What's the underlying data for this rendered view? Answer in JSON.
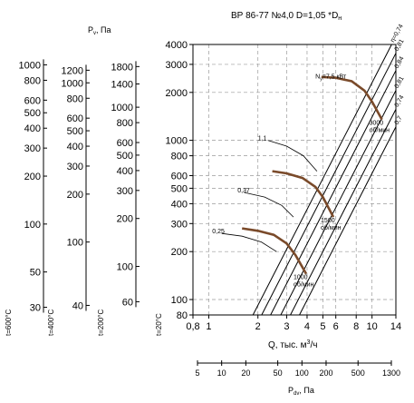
{
  "chart_data": {
    "type": "line",
    "title": "ВР 86-77 №4,0   D=1,05   *D",
    "title_subscript": "н",
    "xlabel": "Q, тыс. м",
    "xlabel_superscript": "3",
    "xlabel_suffix": "/ч",
    "x_scale": "log",
    "y_scale": "log",
    "xlim": [
      0.8,
      14
    ],
    "ylim": [
      80,
      4000
    ],
    "grid": true,
    "x_ticks": [
      0.8,
      1,
      2,
      3,
      4,
      5,
      6,
      8,
      10,
      14
    ],
    "x_tick_labels": [
      "0,8",
      "1",
      "2",
      "3",
      "4",
      "5",
      "6",
      "8",
      "10",
      "14"
    ],
    "y_ticks": [
      80,
      100,
      200,
      300,
      400,
      500,
      600,
      800,
      1000,
      2000,
      3000,
      4000
    ],
    "y_tick_labels": [
      "80",
      "100",
      "200",
      "300",
      "400",
      "500",
      "600",
      "800",
      "1000",
      "2000",
      "3000",
      "4000"
    ],
    "temperature_label": "t=20°C",
    "pv_label": "P",
    "pv_label_sub": "v",
    "pv_label_suffix": ", Па",
    "pv_scales": [
      {
        "name": "t=600°C",
        "ticks": [
          30,
          50,
          100,
          200,
          300,
          400,
          500,
          600,
          800,
          1000
        ]
      },
      {
        "name": "t=400°C",
        "ticks": [
          40,
          100,
          200,
          300,
          400,
          500,
          600,
          800,
          1000,
          1200
        ]
      },
      {
        "name": "t=200°C",
        "ticks": [
          60,
          100,
          200,
          300,
          400,
          500,
          600,
          800,
          1000,
          1400,
          1800
        ]
      }
    ],
    "pdv_label": "P",
    "pdv_label_sub": "dv",
    "pdv_label_suffix": ", Па",
    "pdv_ticks": [
      5,
      10,
      20,
      50,
      100,
      200,
      500,
      1300
    ],
    "efficiency_lines": [
      {
        "name": "η=0,74",
        "coeff": 23
      },
      {
        "name": "0,81",
        "coeff": 18
      },
      {
        "name": "0,84",
        "coeff": 14
      },
      {
        "name": "0,81",
        "coeff": 10.5
      },
      {
        "name": "0,74",
        "coeff": 8
      },
      {
        "name": "0,7",
        "coeff": 6.2
      }
    ],
    "series": [
      {
        "name": "3000",
        "sublabel": "об/мин",
        "x": [
          4.9,
          6,
          7.5,
          9,
          10,
          11.5
        ],
        "y": [
          2500,
          2470,
          2350,
          2050,
          1750,
          1350
        ]
      },
      {
        "name": "1500",
        "sublabel": "об/мин",
        "x": [
          2.45,
          3,
          3.75,
          4.5,
          5,
          5.8
        ],
        "y": [
          640,
          620,
          580,
          510,
          440,
          330
        ]
      },
      {
        "name": "1000",
        "sublabel": "об/мин",
        "x": [
          1.6,
          2,
          2.5,
          3,
          3.4,
          3.95
        ],
        "y": [
          280,
          270,
          255,
          225,
          190,
          145
        ]
      }
    ],
    "power_labels": [
      {
        "text": "N",
        "sub": "у",
        "suffix": "=7,5 кВт",
        "q": 4.5,
        "p": 2450
      },
      {
        "text": "1,1",
        "q": 2.0,
        "p": 1000
      },
      {
        "text": "0,37",
        "q": 1.5,
        "p": 470
      },
      {
        "text": "0,25",
        "q": 1.05,
        "p": 260
      }
    ],
    "power_isolines": [
      {
        "q": [
          2.3,
          3.0,
          3.8,
          4.6
        ],
        "p": [
          1000,
          920,
          800,
          640
        ]
      },
      {
        "q": [
          1.65,
          2.2,
          2.8,
          3.3
        ],
        "p": [
          470,
          440,
          390,
          330
        ]
      },
      {
        "q": [
          1.2,
          1.6,
          2.1,
          2.6
        ],
        "p": [
          260,
          250,
          230,
          200
        ]
      }
    ]
  }
}
